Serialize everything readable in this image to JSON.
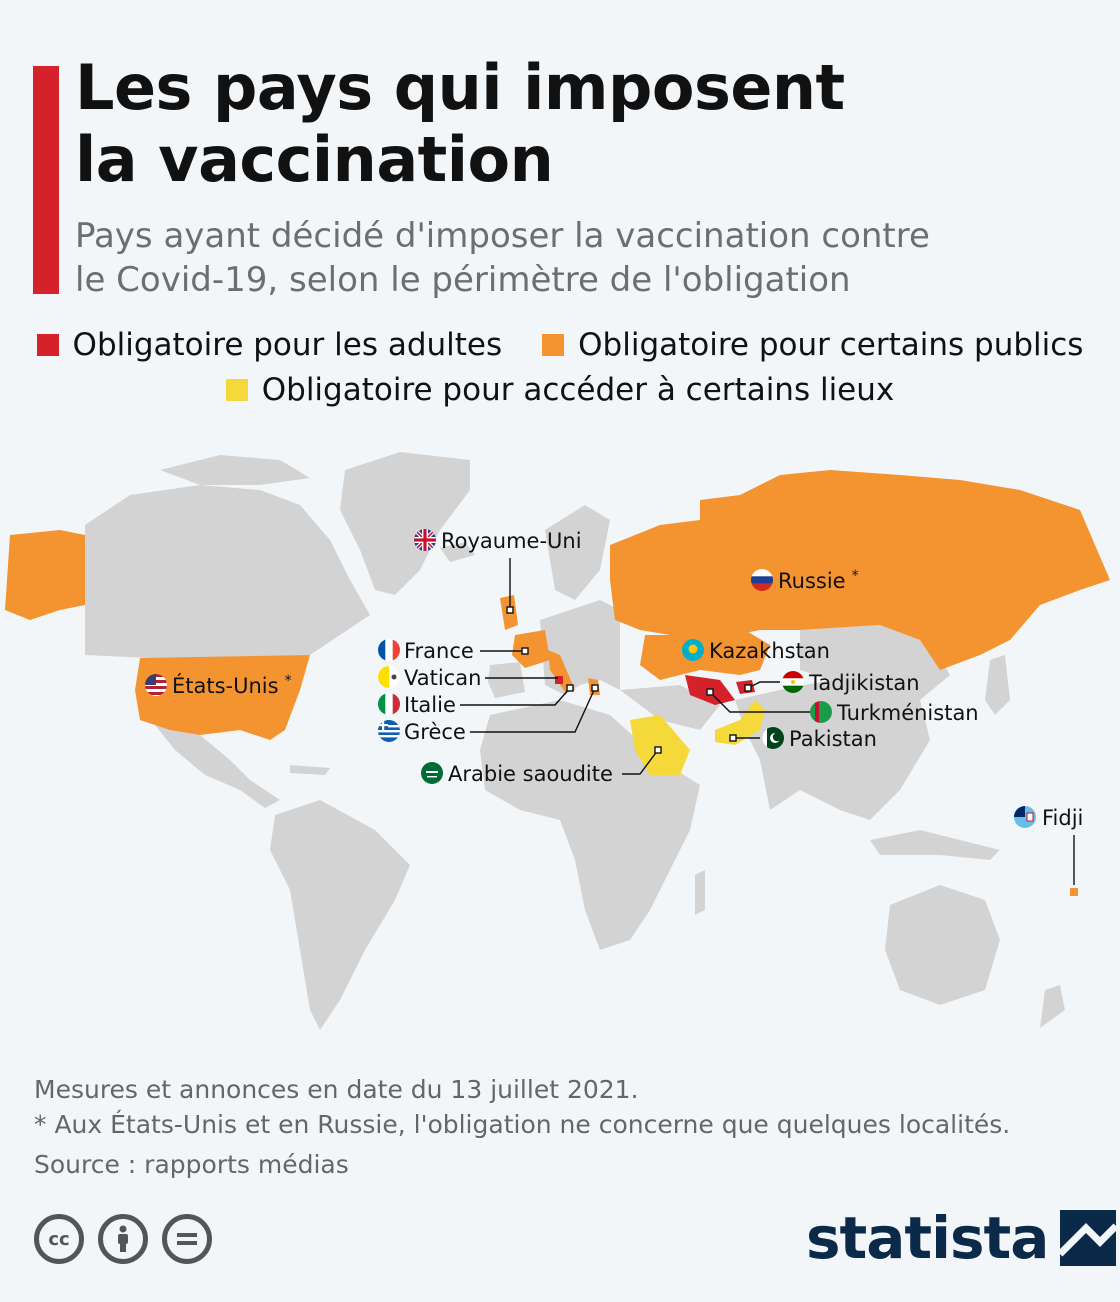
{
  "header": {
    "title_line1": "Les pays qui imposent",
    "title_line2": "la vaccination",
    "subtitle_line1": "Pays ayant décidé d'imposer la vaccination contre",
    "subtitle_line2": "le Covid-19, selon le périmètre de l'obligation"
  },
  "colors": {
    "accent": "#d4212a",
    "adults": "#d4212a",
    "certain_publics": "#f39431",
    "certain_places": "#f5d93a",
    "no_obligation": "#d3d3d3",
    "background": "#f3f6f9"
  },
  "legend": [
    {
      "label": "Obligatoire pour les adultes",
      "color": "#d4212a"
    },
    {
      "label": "Obligatoire pour certains publics",
      "color": "#f39431"
    },
    {
      "label": "Obligatoire pour accéder à certains lieux",
      "color": "#f5d93a"
    }
  ],
  "map": {
    "countries": [
      {
        "name": "Royaume-Uni",
        "category": "certain_publics",
        "flag": "uk-flag-icon"
      },
      {
        "name": "Russie",
        "category": "certain_publics",
        "flag": "russia-flag-icon",
        "note": "*"
      },
      {
        "name": "France",
        "category": "certain_publics",
        "flag": "france-flag-icon"
      },
      {
        "name": "Kazakhstan",
        "category": "certain_publics",
        "flag": "kazakhstan-flag-icon"
      },
      {
        "name": "Vatican",
        "category": "adults",
        "flag": "vatican-flag-icon"
      },
      {
        "name": "Tadjikistan",
        "category": "adults",
        "flag": "tajikistan-flag-icon"
      },
      {
        "name": "États-Unis",
        "category": "certain_publics",
        "flag": "usa-flag-icon",
        "note": "*"
      },
      {
        "name": "Italie",
        "category": "certain_publics",
        "flag": "italy-flag-icon"
      },
      {
        "name": "Turkménistan",
        "category": "adults",
        "flag": "turkmenistan-flag-icon"
      },
      {
        "name": "Grèce",
        "category": "certain_publics",
        "flag": "greece-flag-icon"
      },
      {
        "name": "Pakistan",
        "category": "certain_places",
        "flag": "pakistan-flag-icon"
      },
      {
        "name": "Arabie saoudite",
        "category": "certain_places",
        "flag": "saudi-arabia-flag-icon"
      },
      {
        "name": "Fidji",
        "category": "certain_publics",
        "flag": "fiji-flag-icon"
      }
    ]
  },
  "footer": {
    "note1": "Mesures et annonces en date du 13 juillet 2021.",
    "note2": "* Aux États-Unis et en Russie, l'obligation ne concerne que quelques localités.",
    "source": "Source : rapports médias",
    "license_icons": [
      "cc-icon",
      "by-icon",
      "nd-icon"
    ],
    "brand": "statista",
    "brand_icon": "statista-logo-icon"
  }
}
